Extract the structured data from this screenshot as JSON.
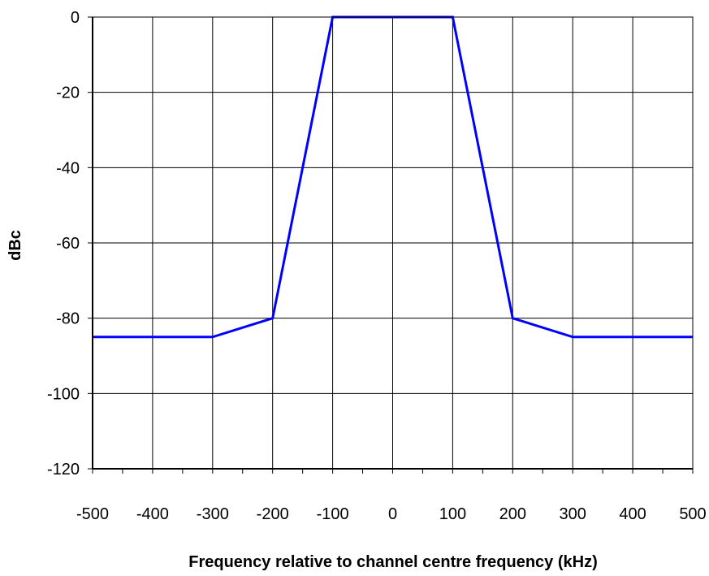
{
  "chart_data": {
    "type": "line",
    "title": "",
    "xlabel": "Frequency relative to channel centre frequency  (kHz)",
    "ylabel": "dBc",
    "xlim": [
      -500,
      500
    ],
    "ylim": [
      -120,
      0
    ],
    "x_ticks": [
      -500,
      -400,
      -300,
      -200,
      -100,
      0,
      100,
      200,
      300,
      400,
      500
    ],
    "y_ticks": [
      0,
      -20,
      -40,
      -60,
      -80,
      -100,
      -120
    ],
    "x_minor_step": 50,
    "grid": true,
    "legend": "none",
    "series": [
      {
        "color": "#0000ff",
        "points": [
          [
            -500,
            -85
          ],
          [
            -300,
            -85
          ],
          [
            -200,
            -80
          ],
          [
            -100,
            0
          ],
          [
            100,
            0
          ],
          [
            200,
            -80
          ],
          [
            300,
            -85
          ],
          [
            500,
            -85
          ]
        ]
      }
    ]
  }
}
